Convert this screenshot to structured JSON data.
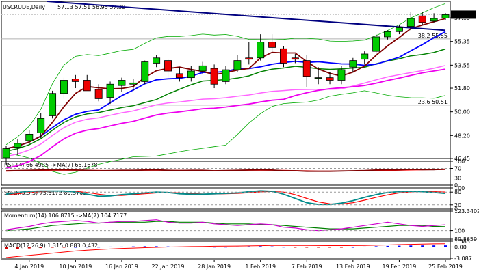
{
  "window": {
    "symbol": "USCRUDE,Daily",
    "ohlc": "57.13 57.51 56.95 57.39"
  },
  "chart_data": {
    "type": "candlestick",
    "main": {
      "ylim": [
        46.45,
        58.4
      ],
      "y_ticks": [
        "57.15",
        "55.35",
        "53.55",
        "51.80",
        "50.00",
        "48.20",
        "46.45"
      ],
      "current_price": "57.39",
      "fib_levels": [
        {
          "label": "38.2 55.55",
          "value": 55.55
        },
        {
          "label": "23.6 50.51",
          "value": 50.51
        }
      ],
      "candles": [
        {
          "date": "02 Jan",
          "o": 46.5,
          "h": 47.4,
          "l": 46.0,
          "c": 47.2
        },
        {
          "date": "03 Jan",
          "o": 47.3,
          "h": 47.9,
          "l": 46.7,
          "c": 47.6
        },
        {
          "date": "04 Jan",
          "o": 47.8,
          "h": 48.6,
          "l": 47.5,
          "c": 48.3
        },
        {
          "date": "07 Jan",
          "o": 48.4,
          "h": 49.9,
          "l": 48.0,
          "c": 49.5
        },
        {
          "date": "08 Jan",
          "o": 49.7,
          "h": 51.6,
          "l": 49.5,
          "c": 51.4
        },
        {
          "date": "09 Jan",
          "o": 51.4,
          "h": 52.6,
          "l": 51.0,
          "c": 52.4
        },
        {
          "date": "10 Jan",
          "o": 52.5,
          "h": 52.8,
          "l": 51.8,
          "c": 52.3
        },
        {
          "date": "11 Jan",
          "o": 52.4,
          "h": 52.8,
          "l": 51.6,
          "c": 51.6
        },
        {
          "date": "14 Jan",
          "o": 51.7,
          "h": 52.1,
          "l": 50.8,
          "c": 51.0
        },
        {
          "date": "15 Jan",
          "o": 51.1,
          "h": 52.3,
          "l": 50.6,
          "c": 52.1
        },
        {
          "date": "16 Jan",
          "o": 52.0,
          "h": 52.6,
          "l": 51.5,
          "c": 52.4
        },
        {
          "date": "17 Jan",
          "o": 52.1,
          "h": 52.5,
          "l": 51.6,
          "c": 52.2
        },
        {
          "date": "18 Jan",
          "o": 52.3,
          "h": 53.9,
          "l": 52.1,
          "c": 53.8
        },
        {
          "date": "21 Jan",
          "o": 53.7,
          "h": 54.3,
          "l": 53.4,
          "c": 54.1
        },
        {
          "date": "22 Jan",
          "o": 53.9,
          "h": 54.0,
          "l": 52.6,
          "c": 53.1
        },
        {
          "date": "23 Jan",
          "o": 52.9,
          "h": 53.4,
          "l": 52.3,
          "c": 52.6
        },
        {
          "date": "24 Jan",
          "o": 52.6,
          "h": 53.5,
          "l": 52.3,
          "c": 53.1
        },
        {
          "date": "25 Jan",
          "o": 53.1,
          "h": 53.8,
          "l": 52.9,
          "c": 53.5
        },
        {
          "date": "28 Jan",
          "o": 53.3,
          "h": 53.6,
          "l": 51.8,
          "c": 52.1
        },
        {
          "date": "29 Jan",
          "o": 52.3,
          "h": 53.5,
          "l": 52.1,
          "c": 53.2
        },
        {
          "date": "30 Jan",
          "o": 53.2,
          "h": 54.3,
          "l": 53.0,
          "c": 53.9
        },
        {
          "date": "31 Jan",
          "o": 54.1,
          "h": 55.3,
          "l": 53.6,
          "c": 54.0
        },
        {
          "date": "01 Feb",
          "o": 54.1,
          "h": 55.9,
          "l": 53.9,
          "c": 55.3
        },
        {
          "date": "04 Feb",
          "o": 55.3,
          "h": 55.9,
          "l": 54.5,
          "c": 54.9
        },
        {
          "date": "05 Feb",
          "o": 54.8,
          "h": 55.0,
          "l": 53.4,
          "c": 53.7
        },
        {
          "date": "06 Feb",
          "o": 54.1,
          "h": 54.4,
          "l": 53.7,
          "c": 54.0
        },
        {
          "date": "07 Feb",
          "o": 53.9,
          "h": 54.3,
          "l": 51.9,
          "c": 52.7
        },
        {
          "date": "08 Feb",
          "o": 52.6,
          "h": 53.4,
          "l": 52.1,
          "c": 52.6
        },
        {
          "date": "11 Feb",
          "o": 52.6,
          "h": 53.0,
          "l": 52.1,
          "c": 52.4
        },
        {
          "date": "12 Feb",
          "o": 52.4,
          "h": 53.5,
          "l": 52.1,
          "c": 53.2
        },
        {
          "date": "13 Feb",
          "o": 53.4,
          "h": 54.1,
          "l": 53.0,
          "c": 53.9
        },
        {
          "date": "14 Feb",
          "o": 54.0,
          "h": 54.6,
          "l": 53.6,
          "c": 54.4
        },
        {
          "date": "15 Feb",
          "o": 54.6,
          "h": 55.9,
          "l": 54.4,
          "c": 55.7
        },
        {
          "date": "18 Feb",
          "o": 55.7,
          "h": 56.2,
          "l": 55.5,
          "c": 56.1
        },
        {
          "date": "19 Feb",
          "o": 56.1,
          "h": 56.6,
          "l": 55.9,
          "c": 56.4
        },
        {
          "date": "20 Feb",
          "o": 56.5,
          "h": 57.6,
          "l": 56.2,
          "c": 57.1
        },
        {
          "date": "21 Feb",
          "o": 57.3,
          "h": 57.6,
          "l": 56.6,
          "c": 56.8
        },
        {
          "date": "22 Feb",
          "o": 56.9,
          "h": 57.5,
          "l": 56.8,
          "c": 57.1
        },
        {
          "date": "25 Feb",
          "o": 57.13,
          "h": 57.51,
          "l": 56.95,
          "c": 57.39
        }
      ],
      "line_colors": {
        "upper_band": "#00aa00",
        "lower_band": "#00aa00",
        "ma_blue": "#0000ff",
        "ma_green": "#008000",
        "ma_darkred": "#800000",
        "ma_magenta": "#ee00ee",
        "ma_violet": "#ff66ff",
        "trendline": "#000080"
      }
    },
    "rsi": {
      "label": "RSI(14) 66.4985 ->MA(7) 65.1678",
      "ylim": [
        0,
        100
      ],
      "ticks": [
        "100",
        "70",
        "30",
        "0"
      ],
      "values": [
        60,
        61,
        62,
        63,
        64,
        64,
        63,
        62,
        60,
        61,
        62,
        62,
        63,
        64,
        62,
        61,
        62,
        62,
        60,
        61,
        62,
        63,
        64,
        63,
        60,
        60,
        58,
        58,
        58,
        59,
        60,
        61,
        63,
        64,
        64,
        66,
        65,
        65,
        66.5
      ],
      "ma_values": [
        58,
        59,
        60,
        61,
        62,
        62,
        62,
        62,
        62,
        61,
        61,
        61,
        62,
        62,
        62,
        62,
        62,
        62,
        61,
        61,
        61,
        62,
        62,
        62,
        62,
        61,
        60,
        59,
        59,
        59,
        59,
        59,
        60,
        61,
        62,
        63,
        64,
        65,
        65.2
      ]
    },
    "stoch": {
      "label": "Stoch(5,3,3) 73.5172 80.3763",
      "ylim": [
        0,
        100
      ],
      "ticks": [
        "100",
        "80",
        "20",
        "0"
      ],
      "k": [
        70,
        78,
        84,
        85,
        85,
        85,
        80,
        70,
        60,
        62,
        68,
        72,
        76,
        80,
        78,
        72,
        70,
        70,
        72,
        74,
        76,
        82,
        86,
        84,
        70,
        50,
        30,
        22,
        22,
        28,
        40,
        55,
        68,
        78,
        82,
        84,
        82,
        78,
        73.5
      ],
      "d": [
        68,
        72,
        78,
        82,
        84,
        85,
        84,
        78,
        70,
        64,
        64,
        68,
        72,
        76,
        78,
        76,
        74,
        71,
        71,
        72,
        74,
        77,
        81,
        83,
        80,
        68,
        50,
        34,
        25,
        24,
        30,
        42,
        55,
        67,
        76,
        81,
        83,
        82,
        80.4
      ]
    },
    "momentum": {
      "label": "Momentum(14) 106.8715 ->MA(7) 104.7177",
      "ticks": [
        "123.3402",
        "100",
        "89.8659"
      ],
      "ylim": [
        89.8659,
        123.3402
      ],
      "values": [
        101,
        103,
        105,
        108,
        110,
        111,
        112,
        111,
        109,
        110,
        111,
        111,
        112,
        113,
        110,
        109,
        109,
        110,
        108,
        107,
        106,
        107,
        108,
        107,
        104,
        103,
        101,
        100,
        101,
        102,
        104,
        106,
        108,
        110,
        108,
        106,
        105,
        106,
        106.9
      ],
      "ma_values": [
        100,
        101,
        102,
        104,
        106,
        107,
        108,
        109,
        109,
        110,
        110,
        110,
        110,
        111,
        111,
        110,
        110,
        110,
        109,
        108,
        108,
        108,
        107,
        107,
        106,
        105,
        104,
        103,
        102,
        102,
        102,
        103,
        104,
        105,
        106,
        106,
        106,
        105,
        104.7
      ]
    },
    "macd": {
      "label": "MACD(12,26,9) 1.315 0.883 0.432",
      "ticks": [
        "1.583",
        "0.00",
        "-3.087"
      ],
      "ylim": [
        -3.087,
        1.583
      ],
      "hist": [
        -0.6,
        -0.5,
        -0.4,
        -0.3,
        -0.2,
        -0.1,
        0.0,
        0.05,
        0.05,
        0.1,
        0.1,
        0.15,
        0.2,
        0.2,
        0.15,
        0.1,
        0.1,
        0.1,
        0.05,
        0.05,
        0.1,
        0.15,
        0.2,
        0.15,
        0.05,
        -0.05,
        -0.1,
        -0.15,
        -0.15,
        -0.1,
        0.0,
        0.1,
        0.2,
        0.3,
        0.35,
        0.4,
        0.42,
        0.43,
        0.432
      ],
      "signal": [
        -2.9,
        -2.6,
        -2.3,
        -2.0,
        -1.7,
        -1.4,
        -1.1,
        -0.9,
        -0.7,
        -0.55,
        -0.4,
        -0.3,
        -0.2,
        -0.1,
        0.0,
        0.05,
        0.1,
        0.15,
        0.2,
        0.22,
        0.25,
        0.3,
        0.35,
        0.4,
        0.42,
        0.42,
        0.4,
        0.38,
        0.36,
        0.36,
        0.38,
        0.42,
        0.48,
        0.56,
        0.64,
        0.72,
        0.8,
        0.85,
        0.883
      ]
    },
    "x_labels": [
      "4 Jan 2019",
      "10 Jan 2019",
      "16 Jan 2019",
      "22 Jan 2019",
      "28 Jan 2019",
      "1 Feb 2019",
      "7 Feb 2019",
      "13 Feb 2019",
      "19 Feb 2019",
      "25 Feb 2019"
    ]
  }
}
